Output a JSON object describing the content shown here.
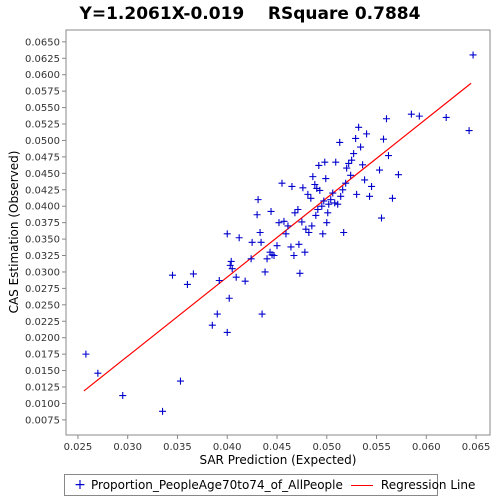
{
  "chart_data": {
    "type": "scatter",
    "title": "Y=1.2061X-0.019    RSquare 0.7884",
    "xlabel": "SAR Prediction (Expected)",
    "ylabel": "CAS Estimation (Observed)",
    "xlim": [
      0.0238,
      0.0664
    ],
    "ylim": [
      0.0052,
      0.0668
    ],
    "x_ticks": [
      "0.025",
      "0.030",
      "0.035",
      "0.040",
      "0.045",
      "0.050",
      "0.055",
      "0.060",
      "0.065"
    ],
    "y_ticks": [
      "0.0075",
      "0.0100",
      "0.0125",
      "0.0150",
      "0.0175",
      "0.0200",
      "0.0225",
      "0.0250",
      "0.0275",
      "0.0300",
      "0.0325",
      "0.0350",
      "0.0375",
      "0.0400",
      "0.0425",
      "0.0450",
      "0.0475",
      "0.0500",
      "0.0525",
      "0.0550",
      "0.0575",
      "0.0600",
      "0.0625",
      "0.0650"
    ],
    "grid": false,
    "legend_position": "bottom",
    "series": [
      {
        "name": "Proportion_PeopleAge70to74_of_AllPeople",
        "color": "#0000cc",
        "marker": "plus",
        "points": [
          [
            0.0258,
            0.0175
          ],
          [
            0.027,
            0.0146
          ],
          [
            0.0295,
            0.0112
          ],
          [
            0.0335,
            0.0088
          ],
          [
            0.0345,
            0.0295
          ],
          [
            0.0353,
            0.0134
          ],
          [
            0.036,
            0.0281
          ],
          [
            0.0366,
            0.0297
          ],
          [
            0.0385,
            0.0219
          ],
          [
            0.039,
            0.0236
          ],
          [
            0.0392,
            0.0287
          ],
          [
            0.04,
            0.0358
          ],
          [
            0.04,
            0.0208
          ],
          [
            0.0402,
            0.026
          ],
          [
            0.0403,
            0.031
          ],
          [
            0.0404,
            0.0316
          ],
          [
            0.0405,
            0.0305
          ],
          [
            0.0409,
            0.0292
          ],
          [
            0.0412,
            0.0352
          ],
          [
            0.0418,
            0.0286
          ],
          [
            0.0424,
            0.032
          ],
          [
            0.0425,
            0.0345
          ],
          [
            0.043,
            0.0387
          ],
          [
            0.0431,
            0.041
          ],
          [
            0.0433,
            0.036
          ],
          [
            0.0434,
            0.0345
          ],
          [
            0.0435,
            0.0236
          ],
          [
            0.0438,
            0.03
          ],
          [
            0.044,
            0.032
          ],
          [
            0.0443,
            0.033
          ],
          [
            0.0444,
            0.0392
          ],
          [
            0.0445,
            0.0326
          ],
          [
            0.0447,
            0.0325
          ],
          [
            0.045,
            0.034
          ],
          [
            0.0452,
            0.0375
          ],
          [
            0.0455,
            0.0435
          ],
          [
            0.0457,
            0.0377
          ],
          [
            0.0459,
            0.0358
          ],
          [
            0.0461,
            0.037
          ],
          [
            0.0464,
            0.0338
          ],
          [
            0.0465,
            0.043
          ],
          [
            0.0467,
            0.0325
          ],
          [
            0.0468,
            0.039
          ],
          [
            0.0471,
            0.0395
          ],
          [
            0.0472,
            0.0342
          ],
          [
            0.0473,
            0.0298
          ],
          [
            0.0475,
            0.0376
          ],
          [
            0.0476,
            0.0428
          ],
          [
            0.0478,
            0.033
          ],
          [
            0.0479,
            0.0365
          ],
          [
            0.0481,
            0.0418
          ],
          [
            0.0482,
            0.036
          ],
          [
            0.0484,
            0.0412
          ],
          [
            0.0485,
            0.037
          ],
          [
            0.0486,
            0.0445
          ],
          [
            0.0488,
            0.0433
          ],
          [
            0.0489,
            0.0386
          ],
          [
            0.049,
            0.0427
          ],
          [
            0.0491,
            0.0395
          ],
          [
            0.0492,
            0.0462
          ],
          [
            0.0493,
            0.0424
          ],
          [
            0.0495,
            0.04
          ],
          [
            0.0496,
            0.0358
          ],
          [
            0.0497,
            0.0408
          ],
          [
            0.0498,
            0.0467
          ],
          [
            0.0499,
            0.0442
          ],
          [
            0.05,
            0.0375
          ],
          [
            0.0501,
            0.039
          ],
          [
            0.0502,
            0.0403
          ],
          [
            0.0504,
            0.041
          ],
          [
            0.0506,
            0.042
          ],
          [
            0.0508,
            0.0405
          ],
          [
            0.0509,
            0.0467
          ],
          [
            0.0511,
            0.0403
          ],
          [
            0.0513,
            0.0497
          ],
          [
            0.0514,
            0.0415
          ],
          [
            0.0516,
            0.0425
          ],
          [
            0.0517,
            0.036
          ],
          [
            0.0519,
            0.0435
          ],
          [
            0.052,
            0.0458
          ],
          [
            0.0522,
            0.0465
          ],
          [
            0.0524,
            0.0447
          ],
          [
            0.0525,
            0.047
          ],
          [
            0.0527,
            0.048
          ],
          [
            0.0529,
            0.0503
          ],
          [
            0.053,
            0.0418
          ],
          [
            0.0532,
            0.052
          ],
          [
            0.0534,
            0.049
          ],
          [
            0.0536,
            0.0463
          ],
          [
            0.0538,
            0.044
          ],
          [
            0.054,
            0.051
          ],
          [
            0.0543,
            0.0415
          ],
          [
            0.0545,
            0.043
          ],
          [
            0.0553,
            0.0455
          ],
          [
            0.0555,
            0.0382
          ],
          [
            0.0557,
            0.0502
          ],
          [
            0.056,
            0.0533
          ],
          [
            0.0562,
            0.0477
          ],
          [
            0.0566,
            0.0412
          ],
          [
            0.0572,
            0.0448
          ],
          [
            0.0585,
            0.054
          ],
          [
            0.0593,
            0.0537
          ],
          [
            0.062,
            0.0535
          ],
          [
            0.0643,
            0.0515
          ],
          [
            0.0647,
            0.063
          ]
        ]
      },
      {
        "name": "Regression Line",
        "color": "#ff0000",
        "line": [
          [
            0.0256,
            0.0119
          ],
          [
            0.0645,
            0.0587
          ]
        ]
      }
    ]
  }
}
